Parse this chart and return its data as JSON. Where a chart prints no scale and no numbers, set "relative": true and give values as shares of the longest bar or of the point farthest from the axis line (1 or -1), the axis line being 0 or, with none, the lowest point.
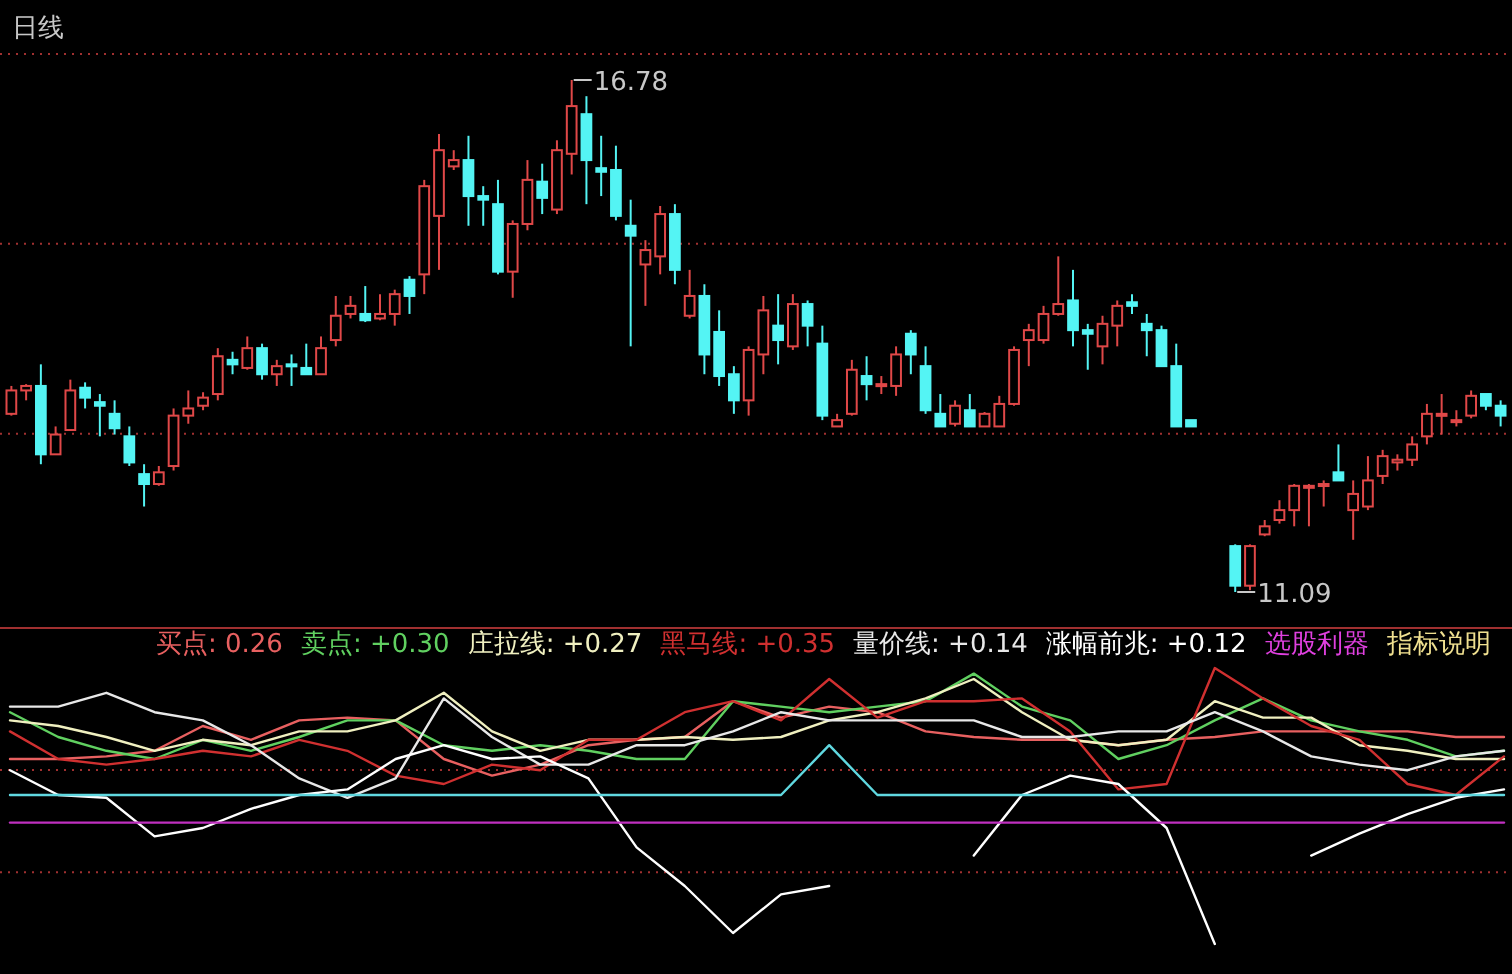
{
  "chart_data": [
    {
      "type": "candlestick",
      "title": "日线",
      "colors": [
        "#e04848",
        "#e04848",
        "#54f4f4",
        "#e04848",
        "#e04848",
        "#54f4f4",
        "#54f4f4",
        "#54f4f4",
        "#54f4f4",
        "#54f4f4",
        "#e04848",
        "#e04848",
        "#e04848",
        "#e04848",
        "#e04848",
        "#54f4f4",
        "#e04848",
        "#54f4f4",
        "#e04848",
        "#54f4f4",
        "#54f4f4",
        "#e04848",
        "#e04848",
        "#e04848",
        "#54f4f4",
        "#e04848",
        "#e04848",
        "#54f4f4",
        "#e04848",
        "#e04848",
        "#e04848",
        "#54f4f4",
        "#54f4f4",
        "#54f4f4",
        "#e04848",
        "#e04848",
        "#54f4f4",
        "#e04848",
        "#e04848",
        "#54f4f4",
        "#54f4f4",
        "#54f4f4",
        "#54f4f4",
        "#e04848",
        "#e04848",
        "#54f4f4",
        "#e04848",
        "#54f4f4",
        "#54f4f4",
        "#54f4f4",
        "#e04848",
        "#e04848",
        "#54f4f4",
        "#e04848",
        "#54f4f4",
        "#54f4f4",
        "#e04848",
        "#e04848",
        "#54f4f4",
        "#e04848",
        "#e04848",
        "#54f4f4",
        "#54f4f4",
        "#54f4f4",
        "#e04848",
        "#54f4f4",
        "#e04848",
        "#e04848",
        "#e04848",
        "#e04848",
        "#e04848",
        "#e04848",
        "#54f4f4",
        "#54f4f4",
        "#e04848",
        "#e04848",
        "#54f4f4",
        "#54f4f4",
        "#54f4f4",
        "#54f4f4",
        "#54f4f4",
        null,
        null,
        "#54f4f4",
        "#e04848",
        "#e04848",
        "#e04848",
        "#e04848",
        "#e04848",
        "#e04848",
        "#54f4f4",
        "#e04848",
        "#e04848",
        "#e04848",
        "#e04848",
        "#e04848",
        "#e04848",
        "#e04848",
        "#e04848",
        "#e04848",
        "#54f4f4",
        "#54f4f4"
      ],
      "categories": [
        null,
        null,
        null,
        null,
        null,
        null,
        null,
        null,
        null,
        null,
        null,
        null,
        null,
        null,
        null,
        null,
        null,
        null,
        null,
        null,
        null,
        null,
        null,
        null,
        null,
        null,
        null,
        null,
        null,
        null,
        null,
        null,
        null,
        null,
        null,
        null,
        null,
        null,
        null,
        null,
        null,
        null,
        null,
        null,
        null,
        null,
        null,
        null,
        null,
        null,
        null,
        null,
        null,
        null,
        null,
        null,
        null,
        null,
        null,
        null,
        null,
        null,
        null,
        null,
        null,
        null,
        null,
        null,
        null,
        null,
        null,
        null,
        null,
        null,
        null,
        null,
        null,
        null,
        null,
        null,
        null,
        null,
        null,
        null,
        null,
        null,
        null,
        null,
        null,
        null,
        null,
        null,
        null,
        null,
        null,
        null,
        null,
        null,
        null,
        null,
        null,
        null
      ],
      "ohlc": [
        [
          13.07,
          13.38,
          13.05,
          13.33
        ],
        [
          13.33,
          13.4,
          13.22,
          13.38
        ],
        [
          13.38,
          13.62,
          12.51,
          12.62
        ],
        [
          12.62,
          12.93,
          12.62,
          12.84
        ],
        [
          12.89,
          13.45,
          12.89,
          13.33
        ],
        [
          13.36,
          13.42,
          13.13,
          13.25
        ],
        [
          13.2,
          13.29,
          12.82,
          13.16
        ],
        [
          13.07,
          13.22,
          12.84,
          12.91
        ],
        [
          12.82,
          12.93,
          12.49,
          12.53
        ],
        [
          12.4,
          12.51,
          12.04,
          12.29
        ],
        [
          12.29,
          12.49,
          12.27,
          12.42
        ],
        [
          12.49,
          13.13,
          12.44,
          13.05
        ],
        [
          13.05,
          13.33,
          12.96,
          13.13
        ],
        [
          13.16,
          13.31,
          13.11,
          13.25
        ],
        [
          13.29,
          13.8,
          13.22,
          13.71
        ],
        [
          13.67,
          13.76,
          13.51,
          13.62
        ],
        [
          13.58,
          13.93,
          13.56,
          13.8
        ],
        [
          13.8,
          13.85,
          13.45,
          13.51
        ],
        [
          13.51,
          13.67,
          13.38,
          13.6
        ],
        [
          13.62,
          13.73,
          13.38,
          13.6
        ],
        [
          13.58,
          13.85,
          13.51,
          13.51
        ],
        [
          13.51,
          13.93,
          13.51,
          13.8
        ],
        [
          13.89,
          14.38,
          13.82,
          14.16
        ],
        [
          14.18,
          14.38,
          14.13,
          14.27
        ],
        [
          14.18,
          14.49,
          14.09,
          14.11
        ],
        [
          14.13,
          14.4,
          14.11,
          14.18
        ],
        [
          14.18,
          14.45,
          14.05,
          14.4
        ],
        [
          14.56,
          14.6,
          14.18,
          14.38
        ],
        [
          14.62,
          15.67,
          14.4,
          15.6
        ],
        [
          15.27,
          16.18,
          14.67,
          16.0
        ],
        [
          15.82,
          16.0,
          15.78,
          15.89
        ],
        [
          15.89,
          16.16,
          15.16,
          15.49
        ],
        [
          15.49,
          15.6,
          15.16,
          15.45
        ],
        [
          15.4,
          15.67,
          14.62,
          14.65
        ],
        [
          14.65,
          15.22,
          14.36,
          15.18
        ],
        [
          15.18,
          15.89,
          15.11,
          15.67
        ],
        [
          15.65,
          15.85,
          15.29,
          15.47
        ],
        [
          15.34,
          16.11,
          15.29,
          16.0
        ],
        [
          15.96,
          16.78,
          15.73,
          16.49
        ],
        [
          16.4,
          16.6,
          15.4,
          15.89
        ],
        [
          15.8,
          16.16,
          15.49,
          15.76
        ],
        [
          15.78,
          16.05,
          15.22,
          15.27
        ],
        [
          15.16,
          15.45,
          13.82,
          15.05
        ],
        [
          14.73,
          15.0,
          14.27,
          14.89
        ],
        [
          14.82,
          15.38,
          14.62,
          15.29
        ],
        [
          15.29,
          15.4,
          14.51,
          14.67
        ],
        [
          14.16,
          14.67,
          14.13,
          14.38
        ],
        [
          14.38,
          14.51,
          13.51,
          13.73
        ],
        [
          13.98,
          14.22,
          13.38,
          13.49
        ],
        [
          13.51,
          13.6,
          13.07,
          13.22
        ],
        [
          13.22,
          13.82,
          13.05,
          13.78
        ],
        [
          13.73,
          14.38,
          13.51,
          14.22
        ],
        [
          14.05,
          14.4,
          13.62,
          13.89
        ],
        [
          13.82,
          14.4,
          13.78,
          14.29
        ],
        [
          14.29,
          14.33,
          13.82,
          14.05
        ],
        [
          13.85,
          14.05,
          13.0,
          13.05
        ],
        [
          12.93,
          13.07,
          12.93,
          13.0
        ],
        [
          13.07,
          13.67,
          13.05,
          13.56
        ],
        [
          13.49,
          13.71,
          13.22,
          13.4
        ],
        [
          13.38,
          13.49,
          13.29,
          13.4
        ],
        [
          13.38,
          13.82,
          13.27,
          13.73
        ],
        [
          13.96,
          14.0,
          13.51,
          13.73
        ],
        [
          13.6,
          13.82,
          13.07,
          13.11
        ],
        [
          13.07,
          13.29,
          12.93,
          12.93
        ],
        [
          12.96,
          13.22,
          12.93,
          13.16
        ],
        [
          13.11,
          13.29,
          12.93,
          12.93
        ],
        [
          12.93,
          13.09,
          12.93,
          13.07
        ],
        [
          12.93,
          13.27,
          12.93,
          13.18
        ],
        [
          13.18,
          13.82,
          13.16,
          13.78
        ],
        [
          13.89,
          14.07,
          13.6,
          14.0
        ],
        [
          13.89,
          14.27,
          13.85,
          14.18
        ],
        [
          14.18,
          14.82,
          14.16,
          14.29
        ],
        [
          14.33,
          14.67,
          13.82,
          14.0
        ],
        [
          14.0,
          14.07,
          13.56,
          13.96
        ],
        [
          13.82,
          14.16,
          13.62,
          14.07
        ],
        [
          14.05,
          14.33,
          13.82,
          14.27
        ],
        [
          14.31,
          14.4,
          14.18,
          14.27
        ],
        [
          14.07,
          14.18,
          13.71,
          14.0
        ],
        [
          14.0,
          14.05,
          13.6,
          13.6
        ],
        [
          13.6,
          13.85,
          12.93,
          12.93
        ],
        [
          13.0,
          13.0,
          12.93,
          12.93
        ],
        null,
        null,
        [
          11.6,
          11.62,
          11.09,
          11.16
        ],
        [
          11.16,
          11.62,
          11.11,
          11.6
        ],
        [
          11.73,
          11.89,
          11.71,
          11.82
        ],
        [
          11.89,
          12.11,
          11.85,
          12.0
        ],
        [
          12.0,
          12.29,
          11.82,
          12.27
        ],
        [
          12.25,
          12.29,
          11.82,
          12.27
        ],
        [
          12.27,
          12.33,
          12.04,
          12.29
        ],
        [
          12.42,
          12.73,
          12.33,
          12.33
        ],
        [
          12.0,
          12.33,
          11.67,
          12.18
        ],
        [
          12.04,
          12.6,
          12.0,
          12.33
        ],
        [
          12.38,
          12.67,
          12.29,
          12.6
        ],
        [
          12.53,
          12.62,
          12.44,
          12.56
        ],
        [
          12.56,
          12.82,
          12.49,
          12.73
        ],
        [
          12.82,
          13.18,
          12.73,
          13.07
        ],
        [
          13.05,
          13.29,
          12.84,
          13.07
        ],
        [
          12.98,
          13.11,
          12.93,
          13.0
        ],
        [
          13.05,
          13.33,
          13.02,
          13.27
        ],
        [
          13.29,
          13.29,
          13.11,
          13.16
        ],
        [
          13.16,
          13.22,
          12.93,
          13.05
        ]
      ],
      "ref_lines": [
        {
          "axis": "y",
          "value": 17.07,
          "color": "#a03030",
          "line_style": "dotted"
        },
        {
          "axis": "y",
          "value": 14.96,
          "color": "#a03030",
          "line_style": "dotted"
        },
        {
          "axis": "y",
          "value": 12.85,
          "color": "#a03030",
          "line_style": "dotted"
        }
      ],
      "annotations": [
        "16.78",
        "11.09"
      ]
    },
    {
      "type": "line",
      "relative": true,
      "legend": "top",
      "categories": [
        null,
        null,
        null,
        null,
        null,
        null,
        null,
        null,
        null,
        null,
        null,
        null,
        null,
        null,
        null,
        null,
        null,
        null,
        null,
        null,
        null,
        null,
        null,
        null,
        null,
        null,
        null,
        null,
        null,
        null,
        null,
        null
      ],
      "series": [
        {
          "name": "买点: 0.26",
          "color": "#e86060",
          "values": [
            0.67,
            0.67,
            0.68,
            0.7,
            0.79,
            0.74,
            0.81,
            0.82,
            0.81,
            0.67,
            0.61,
            0.65,
            0.72,
            0.74,
            0.75,
            0.88,
            0.82,
            0.86,
            0.84,
            0.77,
            0.75,
            0.74,
            0.74,
            0.72,
            0.74,
            0.75,
            0.77,
            0.77,
            0.77,
            0.77,
            0.75,
            0.75
          ]
        },
        {
          "name": "卖点: +0.30",
          "color": "#60d060",
          "values": [
            0.84,
            0.75,
            0.7,
            0.67,
            0.74,
            0.7,
            0.75,
            0.81,
            0.81,
            0.72,
            0.7,
            0.72,
            0.7,
            0.67,
            0.67,
            0.88,
            0.86,
            0.84,
            0.86,
            0.88,
            0.98,
            0.86,
            0.81,
            0.67,
            0.72,
            0.81,
            0.89,
            0.81,
            0.77,
            0.74,
            0.68,
            0.7
          ]
        },
        {
          "name": "庄拉线: +0.27",
          "color": "#f0f0c0",
          "values": [
            0.81,
            0.79,
            0.75,
            0.7,
            0.74,
            0.72,
            0.77,
            0.77,
            0.81,
            0.91,
            0.77,
            0.7,
            0.74,
            0.74,
            0.75,
            0.74,
            0.75,
            0.81,
            0.84,
            0.89,
            0.96,
            0.84,
            0.74,
            0.72,
            0.74,
            0.88,
            0.82,
            0.82,
            0.72,
            0.7,
            0.67,
            0.67
          ]
        },
        {
          "name": "黑马线: +0.35",
          "color": "#d03030",
          "values": [
            0.77,
            0.67,
            0.65,
            0.67,
            0.7,
            0.68,
            0.74,
            0.7,
            0.61,
            0.58,
            0.65,
            0.63,
            0.74,
            0.74,
            0.84,
            0.88,
            0.81,
            0.96,
            0.82,
            0.88,
            0.88,
            0.89,
            0.77,
            0.56,
            0.58,
            1.0,
            0.89,
            0.79,
            0.74,
            0.58,
            0.54,
            0.68
          ]
        },
        {
          "name": "量价线: +0.14",
          "color": "#e8e8e8",
          "values": [
            0.86,
            0.86,
            0.91,
            0.84,
            0.81,
            0.72,
            0.6,
            0.53,
            0.6,
            0.89,
            0.75,
            0.65,
            0.65,
            0.72,
            0.72,
            0.77,
            0.84,
            0.81,
            0.81,
            0.81,
            0.81,
            0.75,
            0.75,
            0.77,
            0.77,
            0.84,
            0.77,
            0.68,
            0.65,
            0.63,
            0.68,
            0.7
          ]
        },
        {
          "name": "涨幅前兆: +0.12",
          "color": "#ffffff",
          "values": [
            0.63,
            0.54,
            0.53,
            0.39,
            0.42,
            0.49,
            0.54,
            0.56,
            0.67,
            0.72,
            0.67,
            0.68,
            0.6,
            0.35,
            0.21,
            0.04,
            0.18,
            0.21,
            null,
            null,
            0.32,
            0.54,
            0.61,
            0.58,
            0.42,
            0.0,
            null,
            0.32,
            0.4,
            0.47,
            0.53,
            0.56
          ]
        },
        {
          "color": "#60d8e0",
          "values": [
            0.54,
            0.54,
            0.54,
            0.54,
            0.54,
            0.54,
            0.54,
            0.54,
            0.54,
            0.54,
            0.54,
            0.54,
            0.54,
            0.54,
            0.54,
            0.54,
            0.54,
            0.72,
            0.54,
            0.54,
            0.54,
            0.54,
            0.54,
            0.54,
            0.54,
            0.54,
            0.54,
            0.54,
            0.54,
            0.54,
            0.54,
            0.54
          ]
        },
        {
          "color": "#c030c0",
          "values": [
            0.44,
            0.44,
            0.44,
            0.44,
            0.44,
            0.44,
            0.44,
            0.44,
            0.44,
            0.44,
            0.44,
            0.44,
            0.44,
            0.44,
            0.44,
            0.44,
            0.44,
            0.44,
            0.44,
            0.44,
            0.44,
            0.44,
            0.44,
            0.44,
            0.44,
            0.44,
            0.44,
            0.44,
            0.44,
            0.44,
            0.44,
            0.44
          ]
        }
      ],
      "ref_lines": [
        {
          "axis": "y",
          "value": 0.63,
          "color": "#a03030",
          "line_style": "dotted"
        },
        {
          "axis": "y",
          "value": 0.26,
          "color": "#a03030",
          "line_style": "dotted"
        }
      ],
      "annotations": [
        "选股利器",
        "指标说明"
      ]
    }
  ]
}
